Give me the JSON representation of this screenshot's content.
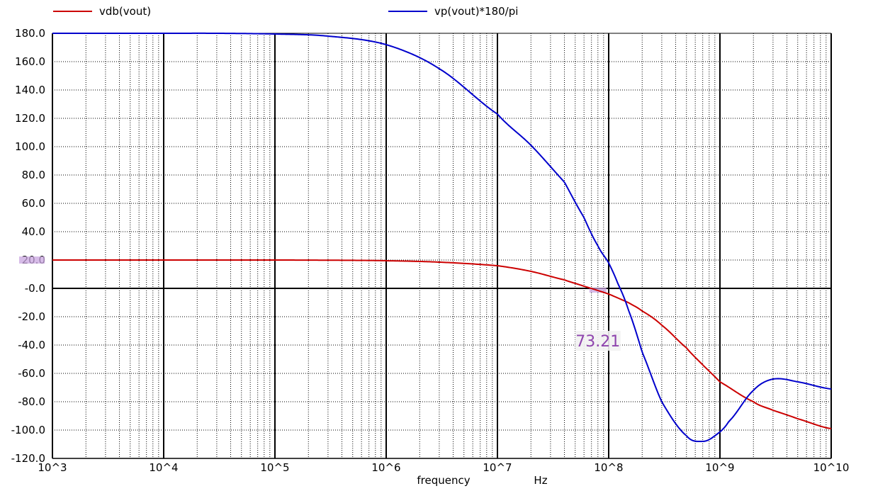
{
  "chart_data": {
    "type": "line",
    "title": "",
    "xlabel": "frequency",
    "xunit": "Hz",
    "ylabel": "",
    "xscale": "log",
    "xlim": [
      1000,
      10000000000
    ],
    "ylim": [
      -120,
      180
    ],
    "grid": true,
    "legend_position": "top",
    "x_tick_labels": [
      "10^3",
      "10^4",
      "10^5",
      "10^6",
      "10^7",
      "10^8",
      "10^9",
      "10^10"
    ],
    "y_tick_labels": [
      "180.0",
      "160.0",
      "140.0",
      "120.0",
      "100.0",
      "80.0",
      "60.0",
      "40.0",
      "20.0",
      "-0.0",
      "-20.0",
      "-40.0",
      "-60.0",
      "-80.0",
      "-100.0",
      "-120.0"
    ],
    "series": [
      {
        "name": "vdb(vout)",
        "color": "#cc0000",
        "x": [
          1000,
          10000,
          100000,
          500000,
          1000000,
          3000000,
          10000000,
          20000000,
          40000000,
          60000000,
          100000000,
          150000000,
          200000000,
          300000000,
          500000000,
          700000000,
          1000000000,
          2000000000,
          3000000000,
          5000000000,
          10000000000
        ],
        "y": [
          20,
          20,
          20,
          19.8,
          19.5,
          18.5,
          16,
          12,
          6,
          1.5,
          -4,
          -10,
          -16,
          -26,
          -42,
          -54,
          -66,
          -80,
          -86,
          -92,
          -99
        ]
      },
      {
        "name": "vp(vout)*180/pi",
        "color": "#0000cc",
        "x": [
          1000,
          10000,
          30000,
          100000,
          300000,
          1000000,
          3000000,
          10000000,
          20000000,
          40000000,
          60000000,
          80000000,
          100000000,
          120000000,
          150000000,
          200000000,
          300000000,
          500000000,
          700000000,
          900000000,
          1200000000,
          2000000000,
          3000000000,
          5000000000,
          10000000000
        ],
        "y": [
          180,
          180,
          180,
          179.5,
          178,
          172,
          155,
          123,
          101,
          75,
          50,
          30,
          18,
          4,
          -15,
          -45,
          -80,
          -104,
          -108,
          -104,
          -94,
          -72,
          -64,
          -66,
          -71
        ]
      }
    ],
    "annotations": [
      {
        "text": "73.21",
        "x": 80000000,
        "y": -20,
        "color": "#8e44ad"
      }
    ]
  }
}
